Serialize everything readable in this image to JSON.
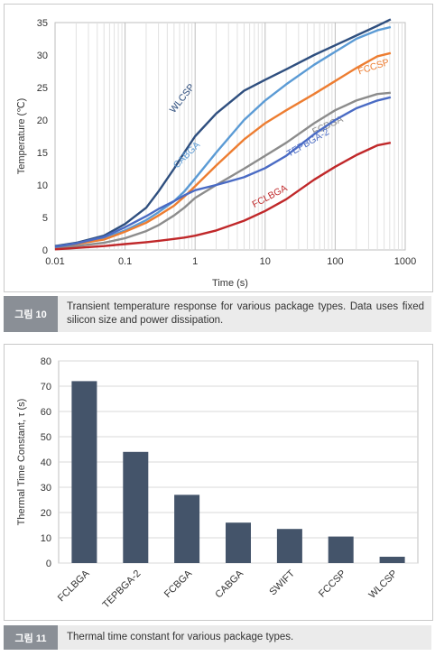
{
  "figure1": {
    "caption_tag": "그림 10",
    "caption": "Transient temperature response for various package types. Data uses fixed silicon size and power dissipation.",
    "chart_data": {
      "type": "line",
      "xlabel": "Time (s)",
      "ylabel": "Temperature (℃)",
      "xscale": "log",
      "xlim": [
        0.01,
        1000
      ],
      "ylim": [
        0,
        35
      ],
      "xticks": [
        0.01,
        0.1,
        1,
        10,
        100,
        1000
      ],
      "xtick_labels": [
        "0.01",
        "0.1",
        "1",
        "10",
        "100",
        "1000"
      ],
      "yticks": [
        0,
        5,
        10,
        15,
        20,
        25,
        30,
        35
      ],
      "grid": "vertical log gridlines",
      "legend": "none (inline labels)",
      "series": [
        {
          "name": "WLCSP",
          "color": "#2f4f7f",
          "x": [
            0.01,
            0.02,
            0.05,
            0.1,
            0.2,
            0.3,
            0.5,
            0.7,
            1,
            2,
            5,
            10,
            20,
            50,
            100,
            200,
            400,
            620
          ],
          "y": [
            0.6,
            1.1,
            2.2,
            4.0,
            6.5,
            9.0,
            12.5,
            15.0,
            17.5,
            21.0,
            24.5,
            26.2,
            27.8,
            30.0,
            31.5,
            33.0,
            34.5,
            35.5
          ]
        },
        {
          "name": "CABGA",
          "color": "#5b9bd5",
          "x": [
            0.01,
            0.02,
            0.05,
            0.1,
            0.2,
            0.3,
            0.5,
            0.7,
            1,
            2,
            5,
            10,
            20,
            50,
            100,
            200,
            400,
            620
          ],
          "y": [
            0.5,
            1.0,
            1.8,
            3.0,
            4.6,
            5.8,
            7.5,
            9.0,
            11.0,
            15.0,
            20.0,
            23.0,
            25.5,
            28.5,
            30.5,
            32.5,
            33.8,
            34.3
          ]
        },
        {
          "name": "FCCSP",
          "color": "#ed7d31",
          "x": [
            0.01,
            0.02,
            0.05,
            0.1,
            0.2,
            0.3,
            0.5,
            0.7,
            1,
            2,
            5,
            10,
            20,
            50,
            100,
            200,
            400,
            620
          ],
          "y": [
            0.4,
            0.9,
            1.6,
            2.8,
            4.2,
            5.3,
            6.8,
            8.2,
            9.8,
            13.0,
            17.0,
            19.5,
            21.5,
            24.0,
            26.0,
            28.0,
            29.8,
            30.3
          ]
        },
        {
          "name": "FCBGA",
          "color": "#8c8c8c",
          "x": [
            0.01,
            0.02,
            0.05,
            0.1,
            0.2,
            0.3,
            0.5,
            0.7,
            1,
            2,
            5,
            10,
            20,
            50,
            100,
            200,
            400,
            620
          ],
          "y": [
            0.3,
            0.6,
            1.1,
            1.8,
            2.9,
            3.8,
            5.3,
            6.5,
            8.0,
            10.0,
            12.5,
            14.5,
            16.5,
            19.5,
            21.5,
            23.0,
            24.0,
            24.2
          ]
        },
        {
          "name": "TEPBGA-2",
          "color": "#4a6bc4",
          "x": [
            0.01,
            0.02,
            0.05,
            0.1,
            0.2,
            0.3,
            0.5,
            0.7,
            1,
            2,
            5,
            10,
            20,
            50,
            100,
            200,
            400,
            620
          ],
          "y": [
            0.5,
            1.0,
            2.0,
            3.5,
            5.2,
            6.3,
            7.5,
            8.4,
            9.2,
            10.0,
            11.2,
            12.6,
            14.5,
            17.8,
            20.0,
            21.8,
            23.0,
            23.5
          ]
        },
        {
          "name": "FCLBGA",
          "color": "#c0282a",
          "x": [
            0.01,
            0.02,
            0.05,
            0.1,
            0.2,
            0.3,
            0.5,
            0.7,
            1,
            2,
            5,
            10,
            20,
            50,
            100,
            200,
            400,
            620
          ],
          "y": [
            0.1,
            0.3,
            0.6,
            0.9,
            1.2,
            1.4,
            1.7,
            1.9,
            2.2,
            3.0,
            4.5,
            6.0,
            7.8,
            10.8,
            12.8,
            14.6,
            16.1,
            16.5
          ]
        }
      ]
    }
  },
  "figure2": {
    "caption_tag": "그림 11",
    "caption": "Thermal time constant for various package types.",
    "chart_data": {
      "type": "bar",
      "ylabel": "Thermal Time Constant, τ (s)",
      "xlabel": "",
      "ylim": [
        0,
        80
      ],
      "yticks": [
        0,
        10,
        20,
        30,
        40,
        50,
        60,
        70,
        80
      ],
      "grid": "horizontal gridlines",
      "bar_color": "#44546a",
      "categories": [
        "FCLBGA",
        "TEPBGA-2",
        "FCBGA",
        "CABGA",
        "SWIFT",
        "FCCSP",
        "WLCSP"
      ],
      "values": [
        72,
        44,
        27,
        16,
        13.5,
        10.5,
        2.5
      ]
    }
  }
}
